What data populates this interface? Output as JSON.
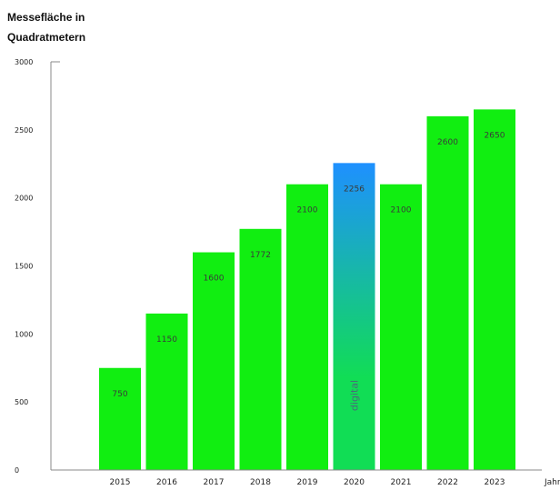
{
  "chart_data": {
    "type": "bar",
    "title_lines": [
      "Messefläche in",
      "Quadratmetern"
    ],
    "xlabel": "Jahr",
    "ylabel": "",
    "ylim": [
      0,
      3000
    ],
    "yticks": [
      0,
      500,
      1000,
      1500,
      2000,
      2500,
      3000
    ],
    "categories": [
      "2015",
      "2016",
      "2017",
      "2018",
      "2019",
      "2020",
      "2021",
      "2022",
      "2023"
    ],
    "values": [
      750,
      1150,
      1600,
      1772,
      2100,
      2256,
      2100,
      2600,
      2650
    ],
    "data_labels": [
      "750",
      "1150",
      "1600",
      "1772",
      "2100",
      "2256",
      "2100",
      "2600",
      "2650"
    ],
    "annotations": [
      {
        "category": "2020",
        "text": "digital"
      }
    ],
    "grid": false,
    "colors": {
      "bar": "#11ee11",
      "highlight_top": "#1e90ff",
      "highlight_bottom": "#11dd55",
      "axis": "#888888"
    },
    "highlight_category": "2020"
  }
}
